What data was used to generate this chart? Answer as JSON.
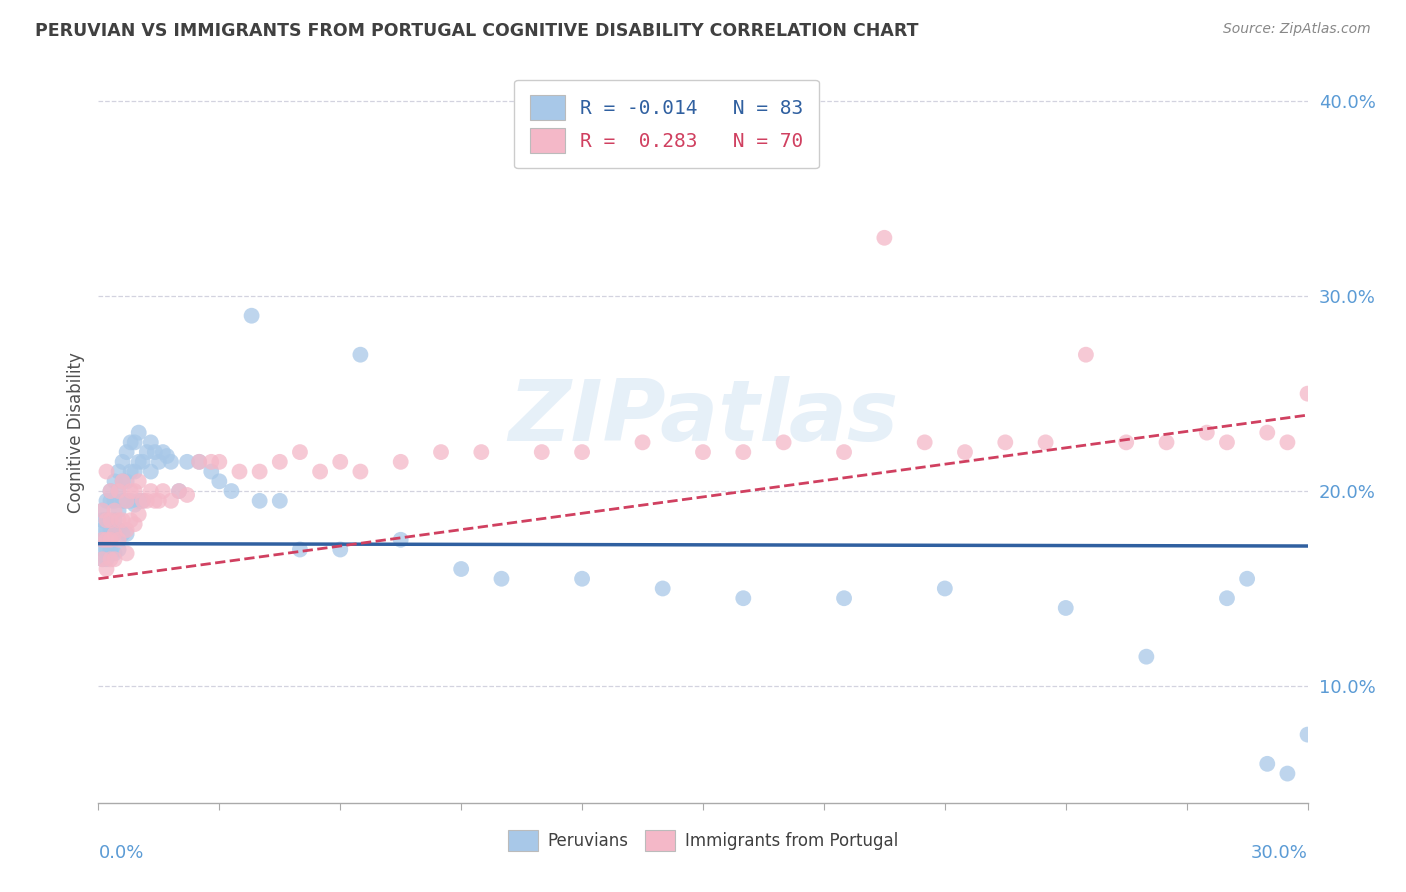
{
  "title": "PERUVIAN VS IMMIGRANTS FROM PORTUGAL COGNITIVE DISABILITY CORRELATION CHART",
  "source": "Source: ZipAtlas.com",
  "ylabel": "Cognitive Disability",
  "xmin": 0.0,
  "xmax": 0.3,
  "ymin": 0.04,
  "ymax": 0.42,
  "yticks": [
    0.1,
    0.2,
    0.3,
    0.4
  ],
  "ytick_labels": [
    "10.0%",
    "20.0%",
    "30.0%",
    "40.0%"
  ],
  "blue_color": "#a8c8e8",
  "pink_color": "#f4b8c8",
  "blue_line_color": "#3060a0",
  "pink_line_color": "#d04060",
  "watermark": "ZIPatlas",
  "background_color": "#ffffff",
  "grid_color": "#c8c8d8",
  "title_color": "#404040",
  "axis_label_color": "#5b9bd5",
  "blue_intercept": 0.173,
  "blue_slope": -0.004,
  "pink_intercept": 0.155,
  "pink_slope": 0.28,
  "peru_x": [
    0.001,
    0.001,
    0.001,
    0.001,
    0.001,
    0.001,
    0.002,
    0.002,
    0.002,
    0.002,
    0.002,
    0.002,
    0.002,
    0.003,
    0.003,
    0.003,
    0.003,
    0.003,
    0.003,
    0.004,
    0.004,
    0.004,
    0.004,
    0.004,
    0.005,
    0.005,
    0.005,
    0.005,
    0.005,
    0.006,
    0.006,
    0.006,
    0.006,
    0.007,
    0.007,
    0.007,
    0.007,
    0.008,
    0.008,
    0.008,
    0.009,
    0.009,
    0.009,
    0.01,
    0.01,
    0.01,
    0.011,
    0.011,
    0.012,
    0.013,
    0.013,
    0.014,
    0.015,
    0.016,
    0.017,
    0.018,
    0.02,
    0.022,
    0.025,
    0.028,
    0.03,
    0.033,
    0.038,
    0.04,
    0.045,
    0.05,
    0.06,
    0.065,
    0.075,
    0.09,
    0.1,
    0.12,
    0.14,
    0.16,
    0.185,
    0.21,
    0.24,
    0.26,
    0.28,
    0.285,
    0.29,
    0.295,
    0.3
  ],
  "peru_y": [
    0.175,
    0.19,
    0.18,
    0.17,
    0.165,
    0.185,
    0.195,
    0.18,
    0.175,
    0.17,
    0.185,
    0.175,
    0.165,
    0.2,
    0.195,
    0.185,
    0.175,
    0.18,
    0.17,
    0.205,
    0.195,
    0.185,
    0.178,
    0.168,
    0.21,
    0.2,
    0.19,
    0.18,
    0.17,
    0.215,
    0.205,
    0.195,
    0.178,
    0.22,
    0.205,
    0.195,
    0.178,
    0.225,
    0.21,
    0.195,
    0.225,
    0.21,
    0.193,
    0.23,
    0.215,
    0.195,
    0.215,
    0.195,
    0.22,
    0.225,
    0.21,
    0.22,
    0.215,
    0.22,
    0.218,
    0.215,
    0.2,
    0.215,
    0.215,
    0.21,
    0.205,
    0.2,
    0.29,
    0.195,
    0.195,
    0.17,
    0.17,
    0.27,
    0.175,
    0.16,
    0.155,
    0.155,
    0.15,
    0.145,
    0.145,
    0.15,
    0.14,
    0.115,
    0.145,
    0.155,
    0.06,
    0.055,
    0.075
  ],
  "port_x": [
    0.001,
    0.001,
    0.001,
    0.002,
    0.002,
    0.002,
    0.002,
    0.003,
    0.003,
    0.003,
    0.003,
    0.004,
    0.004,
    0.004,
    0.005,
    0.005,
    0.005,
    0.006,
    0.006,
    0.007,
    0.007,
    0.007,
    0.008,
    0.008,
    0.009,
    0.009,
    0.01,
    0.01,
    0.011,
    0.012,
    0.013,
    0.014,
    0.015,
    0.016,
    0.018,
    0.02,
    0.022,
    0.025,
    0.028,
    0.03,
    0.035,
    0.04,
    0.045,
    0.05,
    0.055,
    0.06,
    0.065,
    0.075,
    0.085,
    0.095,
    0.11,
    0.12,
    0.135,
    0.15,
    0.16,
    0.17,
    0.185,
    0.195,
    0.205,
    0.215,
    0.225,
    0.235,
    0.245,
    0.255,
    0.265,
    0.275,
    0.28,
    0.29,
    0.295,
    0.3
  ],
  "port_y": [
    0.175,
    0.19,
    0.165,
    0.21,
    0.185,
    0.175,
    0.16,
    0.2,
    0.185,
    0.175,
    0.165,
    0.19,
    0.178,
    0.165,
    0.2,
    0.185,
    0.175,
    0.205,
    0.185,
    0.195,
    0.18,
    0.168,
    0.2,
    0.185,
    0.2,
    0.183,
    0.205,
    0.188,
    0.195,
    0.195,
    0.2,
    0.195,
    0.195,
    0.2,
    0.195,
    0.2,
    0.198,
    0.215,
    0.215,
    0.215,
    0.21,
    0.21,
    0.215,
    0.22,
    0.21,
    0.215,
    0.21,
    0.215,
    0.22,
    0.22,
    0.22,
    0.22,
    0.225,
    0.22,
    0.22,
    0.225,
    0.22,
    0.33,
    0.225,
    0.22,
    0.225,
    0.225,
    0.27,
    0.225,
    0.225,
    0.23,
    0.225,
    0.23,
    0.225,
    0.25
  ]
}
